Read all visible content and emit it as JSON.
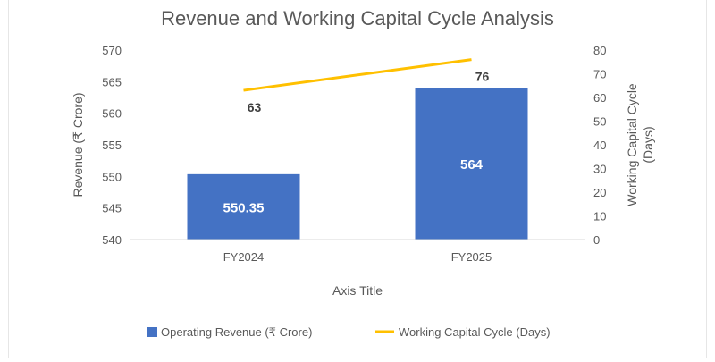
{
  "chart_data": {
    "type": "bar",
    "title": "Revenue and Working Capital Cycle Analysis",
    "xlabel": "Axis Title",
    "ylabel": "Revenue (₹ Crore)",
    "y2label": "Working Capital Cycle (Days)",
    "categories": [
      "FY2024",
      "FY2025"
    ],
    "ylim": [
      540,
      570
    ],
    "yticks": [
      540,
      545,
      550,
      555,
      560,
      565,
      570
    ],
    "y2lim": [
      0,
      80
    ],
    "y2ticks": [
      0,
      10,
      20,
      30,
      40,
      50,
      60,
      70,
      80
    ],
    "grid": false,
    "legend_position": "bottom",
    "series": [
      {
        "name": "Operating Revenue (₹ Crore)",
        "type": "bar",
        "axis": "left",
        "color": "#4472C4",
        "values": [
          550.35,
          564
        ],
        "labels": [
          "550.35",
          "564"
        ]
      },
      {
        "name": "Working Capital Cycle (Days)",
        "type": "line",
        "axis": "right",
        "color": "#FFC000",
        "values": [
          63,
          76
        ],
        "labels": [
          "63",
          "76"
        ]
      }
    ]
  }
}
